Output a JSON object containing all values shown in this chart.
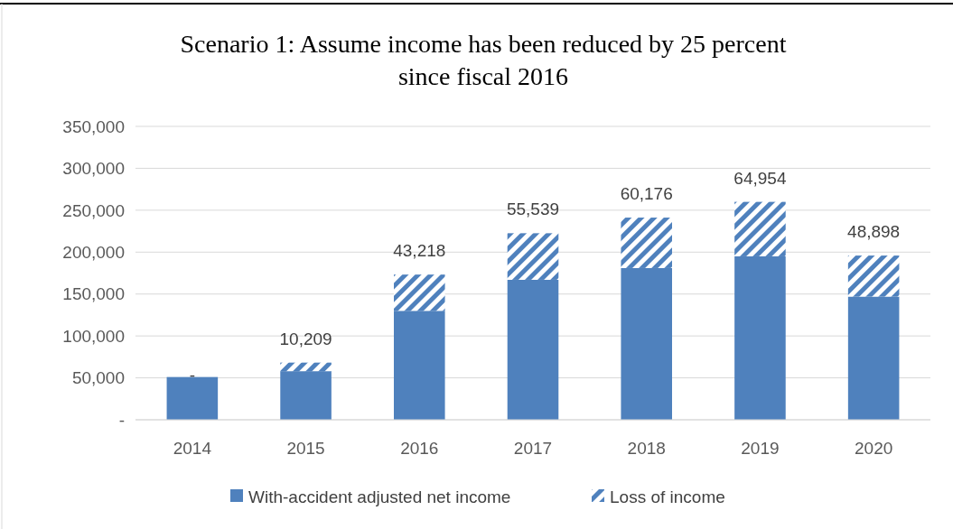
{
  "chart_data": {
    "type": "bar",
    "title": "Scenario 1: Assume income has been reduced by 25 percent since fiscal 2016",
    "categories": [
      "2014",
      "2015",
      "2016",
      "2017",
      "2018",
      "2019",
      "2020"
    ],
    "stacked": true,
    "series": [
      {
        "name": "With-accident adjusted net income",
        "color": "#4f81bd",
        "values": [
          51000,
          58000,
          130000,
          167000,
          181000,
          195000,
          147000
        ]
      },
      {
        "name": "Loss of income",
        "color": "#4f81bd",
        "values": [
          0,
          10209,
          43218,
          55539,
          60176,
          64954,
          48898
        ],
        "value_labels": [
          "-",
          "10,209",
          "43,218",
          "55,539",
          "60,176",
          "64,954",
          "48,898"
        ]
      }
    ],
    "ylim": [
      0,
      350000
    ],
    "yticks": [
      {
        "value": 0,
        "label": "-"
      },
      {
        "value": 50000,
        "label": "50,000"
      },
      {
        "value": 100000,
        "label": "100,000"
      },
      {
        "value": 150000,
        "label": "150,000"
      },
      {
        "value": 200000,
        "label": "200,000"
      },
      {
        "value": 250000,
        "label": "250,000"
      },
      {
        "value": 300000,
        "label": "300,000"
      },
      {
        "value": 350000,
        "label": "350,000"
      }
    ],
    "grid": "y",
    "legend": "bottom"
  }
}
